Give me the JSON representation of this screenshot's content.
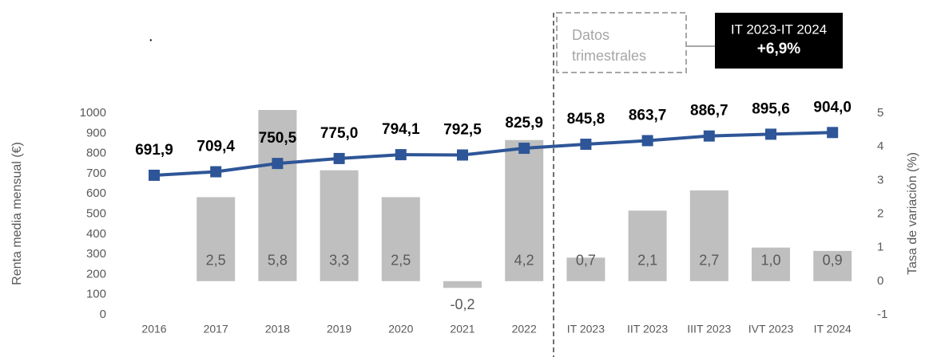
{
  "chart_data": {
    "type": "combo",
    "y_label": "Renta media mensual (€)",
    "y2_label": "Tasa de variación (%)",
    "annotations": {
      "dot": ".",
      "box_dashed": [
        "Datos",
        "trimestrales"
      ],
      "box_black": [
        "IT 2023-IT 2024",
        "+6,9%"
      ]
    },
    "categories": [
      "2016",
      "2017",
      "2018",
      "2019",
      "2020",
      "2021",
      "2022",
      "IT 2023",
      "IIT 2023",
      "IIIT 2023",
      "IVT 2023",
      "IT 2024"
    ],
    "series": [
      {
        "type": "bar",
        "axis": "y2",
        "color": "#bfbfbf",
        "values": [
          null,
          2.5,
          5.8,
          3.3,
          2.5,
          -0.2,
          4.2,
          0.7,
          2.1,
          2.7,
          1.0,
          0.9
        ],
        "value_labels": [
          null,
          "2,5",
          "5,8",
          "3,3",
          "2,5",
          "-0,2",
          "4,2",
          "0,7",
          "2,1",
          "2,7",
          "1,0",
          "0,9"
        ]
      },
      {
        "type": "line",
        "axis": "y",
        "color": "#2e5597",
        "values": [
          691.9,
          709.4,
          750.5,
          775.0,
          794.1,
          792.5,
          825.9,
          845.8,
          863.7,
          886.7,
          895.6,
          904.0
        ],
        "value_labels": [
          "691,9",
          "709,4",
          "750,5",
          "775,0",
          "794,1",
          "792,5",
          "825,9",
          "845,8",
          "863,7",
          "886,7",
          "895,6",
          "904,0"
        ]
      }
    ],
    "ylim": [
      0,
      1000
    ],
    "yticks": [
      0,
      100,
      200,
      300,
      400,
      500,
      600,
      700,
      800,
      900,
      1000
    ],
    "y2lim": [
      -1,
      5
    ],
    "y2ticks": [
      -1,
      0,
      1,
      2,
      3,
      4,
      5
    ]
  }
}
